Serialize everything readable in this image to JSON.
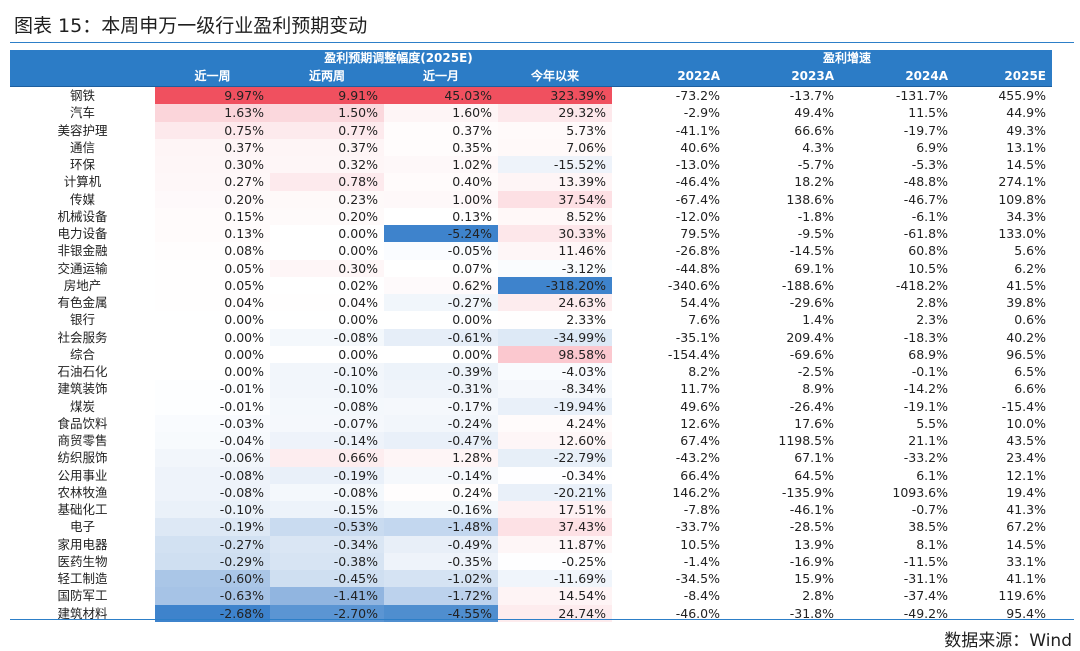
{
  "title": "图表 15：本周申万一级行业盈利预期变动",
  "header": {
    "group1": "盈利预期调整幅度(2025E)",
    "group2": "盈利增速",
    "cols": [
      "近一周",
      "近两周",
      "近一月",
      "今年以来",
      "2022A",
      "2023A",
      "2024A",
      "2025E"
    ]
  },
  "rows": [
    {
      "name": "钢铁",
      "v": [
        "9.97%",
        "9.91%",
        "45.03%",
        "323.39%",
        "-73.2%",
        "-13.7%",
        "-131.7%",
        "455.9%"
      ],
      "bg": [
        "#f0505f",
        "#f0505f",
        "#f0505f",
        "#f0505f"
      ]
    },
    {
      "name": "汽车",
      "v": [
        "1.63%",
        "1.50%",
        "1.60%",
        "29.32%",
        "-2.9%",
        "49.4%",
        "11.5%",
        "44.9%"
      ],
      "bg": [
        "#fbd5da",
        "#fbd8dd",
        "#fef5f6",
        "#fde8eb"
      ]
    },
    {
      "name": "美容护理",
      "v": [
        "0.75%",
        "0.77%",
        "0.37%",
        "5.73%",
        "-41.1%",
        "66.6%",
        "-19.7%",
        "49.3%"
      ],
      "bg": [
        "#fde9ec",
        "#fdeaed",
        "#fffcfc",
        "#fffafa"
      ]
    },
    {
      "name": "通信",
      "v": [
        "0.37%",
        "0.37%",
        "0.35%",
        "7.06%",
        "40.6%",
        "4.3%",
        "6.9%",
        "13.1%"
      ],
      "bg": [
        "#fef5f6",
        "#fef5f6",
        "#fffcfc",
        "#fff9f9"
      ]
    },
    {
      "name": "环保",
      "v": [
        "0.30%",
        "0.32%",
        "1.02%",
        "-15.52%",
        "-13.0%",
        "-5.7%",
        "-5.3%",
        "14.5%"
      ],
      "bg": [
        "#fef6f7",
        "#fef6f7",
        "#fef8f9",
        "#eef3fa"
      ]
    },
    {
      "name": "计算机",
      "v": [
        "0.27%",
        "0.78%",
        "0.40%",
        "13.39%",
        "-46.4%",
        "18.2%",
        "-48.8%",
        "274.1%"
      ],
      "bg": [
        "#fef7f8",
        "#fdeaed",
        "#fffbfb",
        "#fef5f6"
      ]
    },
    {
      "name": "传媒",
      "v": [
        "0.20%",
        "0.23%",
        "1.00%",
        "37.54%",
        "-67.4%",
        "138.6%",
        "-46.7%",
        "109.8%"
      ],
      "bg": [
        "#fef9fa",
        "#fef9f9",
        "#fef8f9",
        "#fde0e4"
      ]
    },
    {
      "name": "机械设备",
      "v": [
        "0.15%",
        "0.20%",
        "0.13%",
        "8.52%",
        "-12.0%",
        "-1.8%",
        "-6.1%",
        "34.3%"
      ],
      "bg": [
        "#fffbfb",
        "#fefafa",
        "#ffffff",
        "#fff8f8"
      ]
    },
    {
      "name": "电力设备",
      "v": [
        "0.13%",
        "0.00%",
        "-5.24%",
        "30.33%",
        "79.5%",
        "-9.5%",
        "-61.8%",
        "133.0%"
      ],
      "bg": [
        "#fffbfb",
        "#ffffff",
        "#3e83cc",
        "#fde7ea"
      ]
    },
    {
      "name": "非银金融",
      "v": [
        "0.08%",
        "0.00%",
        "-0.05%",
        "11.46%",
        "-26.8%",
        "-14.5%",
        "60.8%",
        "5.6%"
      ],
      "bg": [
        "#fffdfd",
        "#ffffff",
        "#fafcff",
        "#fef6f7"
      ]
    },
    {
      "name": "交通运输",
      "v": [
        "0.05%",
        "0.30%",
        "0.07%",
        "-3.12%",
        "-44.8%",
        "69.1%",
        "10.5%",
        "6.2%"
      ],
      "bg": [
        "#fffefe",
        "#fef6f7",
        "#ffffff",
        "#fafcfe"
      ]
    },
    {
      "name": "房地产",
      "v": [
        "0.05%",
        "0.02%",
        "0.62%",
        "-318.20%",
        "-340.6%",
        "-188.6%",
        "-418.2%",
        "41.5%"
      ],
      "bg": [
        "#fffefe",
        "#ffffff",
        "#fefafb",
        "#3e83cc"
      ]
    },
    {
      "name": "有色金属",
      "v": [
        "0.04%",
        "0.04%",
        "-0.27%",
        "24.63%",
        "54.4%",
        "-29.6%",
        "2.8%",
        "39.8%"
      ],
      "bg": [
        "#fffefe",
        "#fffefe",
        "#f1f6fb",
        "#fdecee"
      ]
    },
    {
      "name": "银行",
      "v": [
        "0.00%",
        "0.00%",
        "0.00%",
        "2.33%",
        "7.6%",
        "1.4%",
        "2.3%",
        "0.6%"
      ],
      "bg": [
        "#ffffff",
        "#ffffff",
        "#ffffff",
        "#fffefe"
      ]
    },
    {
      "name": "社会服务",
      "v": [
        "0.00%",
        "-0.08%",
        "-0.61%",
        "-34.99%",
        "-35.1%",
        "209.4%",
        "-18.3%",
        "40.2%"
      ],
      "bg": [
        "#ffffff",
        "#f4f8fc",
        "#e6eef8",
        "#dde9f6"
      ]
    },
    {
      "name": "综合",
      "v": [
        "0.00%",
        "0.00%",
        "0.00%",
        "98.58%",
        "-154.4%",
        "-69.6%",
        "68.9%",
        "96.5%"
      ],
      "bg": [
        "#ffffff",
        "#ffffff",
        "#ffffff",
        "#fbc8cf"
      ]
    },
    {
      "name": "石油石化",
      "v": [
        "0.00%",
        "-0.10%",
        "-0.39%",
        "-4.03%",
        "8.2%",
        "-2.5%",
        "-0.1%",
        "6.5%"
      ],
      "bg": [
        "#ffffff",
        "#f2f6fb",
        "#edf3fa",
        "#f9fbfe"
      ]
    },
    {
      "name": "建筑装饰",
      "v": [
        "-0.01%",
        "-0.10%",
        "-0.31%",
        "-8.34%",
        "11.7%",
        "8.9%",
        "-14.2%",
        "6.6%"
      ],
      "bg": [
        "#fdfeff",
        "#f2f6fb",
        "#eff4fa",
        "#f5f8fc"
      ]
    },
    {
      "name": "煤炭",
      "v": [
        "-0.01%",
        "-0.08%",
        "-0.17%",
        "-19.94%",
        "49.6%",
        "-26.4%",
        "-19.1%",
        "-15.4%"
      ],
      "bg": [
        "#fdfeff",
        "#f4f8fc",
        "#f5f8fc",
        "#e9f0f9"
      ]
    },
    {
      "name": "食品饮料",
      "v": [
        "-0.03%",
        "-0.07%",
        "-0.24%",
        "4.24%",
        "12.6%",
        "17.6%",
        "5.5%",
        "10.0%"
      ],
      "bg": [
        "#f9fbfe",
        "#f5f8fc",
        "#f2f6fb",
        "#fffbfb"
      ]
    },
    {
      "name": "商贸零售",
      "v": [
        "-0.04%",
        "-0.14%",
        "-0.47%",
        "12.60%",
        "67.4%",
        "1198.5%",
        "21.1%",
        "43.5%"
      ],
      "bg": [
        "#f7fafd",
        "#eef3fa",
        "#e9f0f9",
        "#fef6f7"
      ]
    },
    {
      "name": "纺织服饰",
      "v": [
        "-0.06%",
        "0.66%",
        "1.28%",
        "-22.79%",
        "-43.2%",
        "67.1%",
        "-33.2%",
        "23.4%"
      ],
      "bg": [
        "#f2f6fb",
        "#fdedef",
        "#fef5f6",
        "#e7eff8"
      ]
    },
    {
      "name": "公用事业",
      "v": [
        "-0.08%",
        "-0.19%",
        "-0.14%",
        "-0.34%",
        "66.4%",
        "64.5%",
        "6.1%",
        "12.1%"
      ],
      "bg": [
        "#eef3fa",
        "#e9f0f9",
        "#f5f8fc",
        "#fefeff"
      ]
    },
    {
      "name": "农林牧渔",
      "v": [
        "-0.08%",
        "-0.08%",
        "0.24%",
        "-20.21%",
        "146.2%",
        "-135.9%",
        "1093.6%",
        "19.4%"
      ],
      "bg": [
        "#eef3fa",
        "#f4f8fc",
        "#fffdfd",
        "#e9f0f9"
      ]
    },
    {
      "name": "基础化工",
      "v": [
        "-0.10%",
        "-0.15%",
        "-0.16%",
        "17.51%",
        "-7.8%",
        "-46.1%",
        "-0.7%",
        "41.3%"
      ],
      "bg": [
        "#eaf1f9",
        "#edf3fa",
        "#f4f8fc",
        "#fef1f3"
      ]
    },
    {
      "name": "电子",
      "v": [
        "-0.19%",
        "-0.53%",
        "-1.48%",
        "37.43%",
        "-33.7%",
        "-28.5%",
        "38.5%",
        "67.2%"
      ],
      "bg": [
        "#dde8f5",
        "#c9dbf0",
        "#c3d7ef",
        "#fde1e5"
      ]
    },
    {
      "name": "家用电器",
      "v": [
        "-0.27%",
        "-0.34%",
        "-0.49%",
        "11.87%",
        "10.5%",
        "13.9%",
        "8.1%",
        "14.5%"
      ],
      "bg": [
        "#d2e1f2",
        "#dae6f4",
        "#e8eff8",
        "#fef6f7"
      ]
    },
    {
      "name": "医药生物",
      "v": [
        "-0.29%",
        "-0.38%",
        "-0.35%",
        "-0.25%",
        "-1.4%",
        "-16.9%",
        "-11.5%",
        "33.1%"
      ],
      "bg": [
        "#cfdff1",
        "#d7e4f3",
        "#eef3fa",
        "#fefeff"
      ]
    },
    {
      "name": "轻工制造",
      "v": [
        "-0.60%",
        "-0.45%",
        "-1.02%",
        "-11.69%",
        "-34.5%",
        "15.9%",
        "-31.1%",
        "41.1%"
      ],
      "bg": [
        "#aac6e7",
        "#cfdff1",
        "#d5e3f3",
        "#f0f5fb"
      ]
    },
    {
      "name": "国防军工",
      "v": [
        "-0.63%",
        "-1.41%",
        "-1.72%",
        "14.54%",
        "-8.4%",
        "2.8%",
        "-37.4%",
        "119.6%"
      ],
      "bg": [
        "#a6c3e6",
        "#91b5e0",
        "#bcd2ed",
        "#fef4f5"
      ]
    },
    {
      "name": "建筑材料",
      "v": [
        "-2.68%",
        "-2.70%",
        "-4.55%",
        "24.74%",
        "-46.0%",
        "-31.8%",
        "-49.2%",
        "95.4%"
      ],
      "bg": [
        "#3e83cc",
        "#5b95d3",
        "#4f8ecf",
        "#fdecee"
      ]
    }
  ],
  "source": "数据来源：Wind"
}
